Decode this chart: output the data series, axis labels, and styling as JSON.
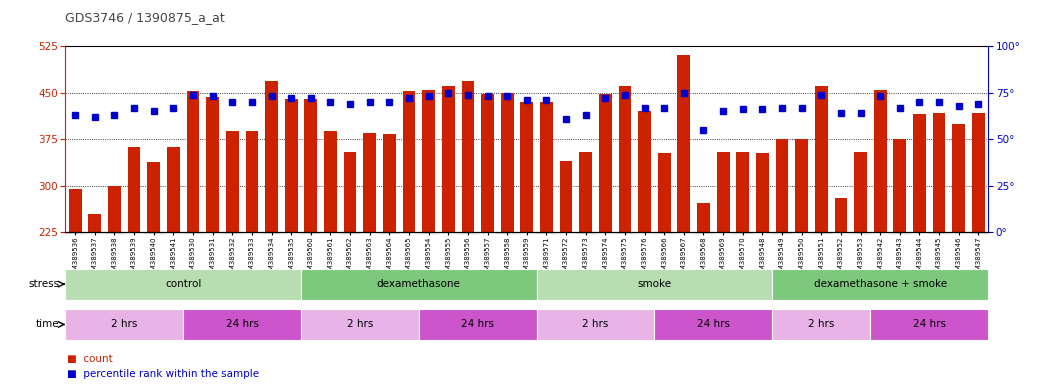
{
  "title": "GDS3746 / 1390875_a_at",
  "samples": [
    "GSM389536",
    "GSM389537",
    "GSM389538",
    "GSM389539",
    "GSM389540",
    "GSM389541",
    "GSM389530",
    "GSM389531",
    "GSM389532",
    "GSM389533",
    "GSM389534",
    "GSM389535",
    "GSM389560",
    "GSM389561",
    "GSM389562",
    "GSM389563",
    "GSM389564",
    "GSM389565",
    "GSM389554",
    "GSM389555",
    "GSM389556",
    "GSM389557",
    "GSM389558",
    "GSM389559",
    "GSM389571",
    "GSM389572",
    "GSM389573",
    "GSM389574",
    "GSM389575",
    "GSM389576",
    "GSM389566",
    "GSM389567",
    "GSM389568",
    "GSM389569",
    "GSM389570",
    "GSM389548",
    "GSM389549",
    "GSM389550",
    "GSM389551",
    "GSM389552",
    "GSM389553",
    "GSM389542",
    "GSM389543",
    "GSM389544",
    "GSM389545",
    "GSM389546",
    "GSM389547"
  ],
  "counts": [
    295,
    255,
    300,
    363,
    338,
    363,
    452,
    443,
    388,
    388,
    468,
    440,
    440,
    388,
    355,
    385,
    383,
    452,
    455,
    460,
    468,
    448,
    450,
    435,
    435,
    340,
    355,
    448,
    460,
    420,
    352,
    510,
    272,
    355,
    355,
    352,
    375,
    375,
    460,
    280,
    355,
    455,
    375,
    415,
    418,
    400,
    418
  ],
  "percentile_ranks": [
    63,
    62,
    63,
    67,
    65,
    67,
    74,
    73,
    70,
    70,
    73,
    72,
    72,
    70,
    69,
    70,
    70,
    72,
    73,
    75,
    74,
    73,
    73,
    71,
    71,
    61,
    63,
    72,
    74,
    67,
    67,
    75,
    55,
    65,
    66,
    66,
    67,
    67,
    74,
    64,
    64,
    73,
    67,
    70,
    70,
    68,
    69
  ],
  "bar_color": "#cc2200",
  "dot_color": "#0000cc",
  "ylim_left": [
    225,
    525
  ],
  "ylim_right": [
    0,
    100
  ],
  "yticks_left": [
    225,
    300,
    375,
    450,
    525
  ],
  "yticks_right": [
    0,
    25,
    50,
    75,
    100
  ],
  "stress_groups": [
    {
      "label": "control",
      "start": 0,
      "end": 12,
      "color": "#b8ddb0"
    },
    {
      "label": "dexamethasone",
      "start": 12,
      "end": 24,
      "color": "#7dc87d"
    },
    {
      "label": "smoke",
      "start": 24,
      "end": 36,
      "color": "#b8ddb0"
    },
    {
      "label": "dexamethasone + smoke",
      "start": 36,
      "end": 47,
      "color": "#7dc87d"
    }
  ],
  "time_groups": [
    {
      "label": "2 hrs",
      "start": 0,
      "end": 6,
      "color": "#e8b4e8"
    },
    {
      "label": "24 hrs",
      "start": 6,
      "end": 12,
      "color": "#cc55cc"
    },
    {
      "label": "2 hrs",
      "start": 12,
      "end": 18,
      "color": "#e8b4e8"
    },
    {
      "label": "24 hrs",
      "start": 18,
      "end": 24,
      "color": "#cc55cc"
    },
    {
      "label": "2 hrs",
      "start": 24,
      "end": 30,
      "color": "#e8b4e8"
    },
    {
      "label": "24 hrs",
      "start": 30,
      "end": 36,
      "color": "#cc55cc"
    },
    {
      "label": "2 hrs",
      "start": 36,
      "end": 41,
      "color": "#e8b4e8"
    },
    {
      "label": "24 hrs",
      "start": 41,
      "end": 47,
      "color": "#cc55cc"
    }
  ],
  "stress_label": "stress",
  "time_label": "time",
  "legend_count": "count",
  "legend_percentile": "percentile rank within the sample",
  "bg_color": "#ffffff",
  "title_color": "#444444"
}
